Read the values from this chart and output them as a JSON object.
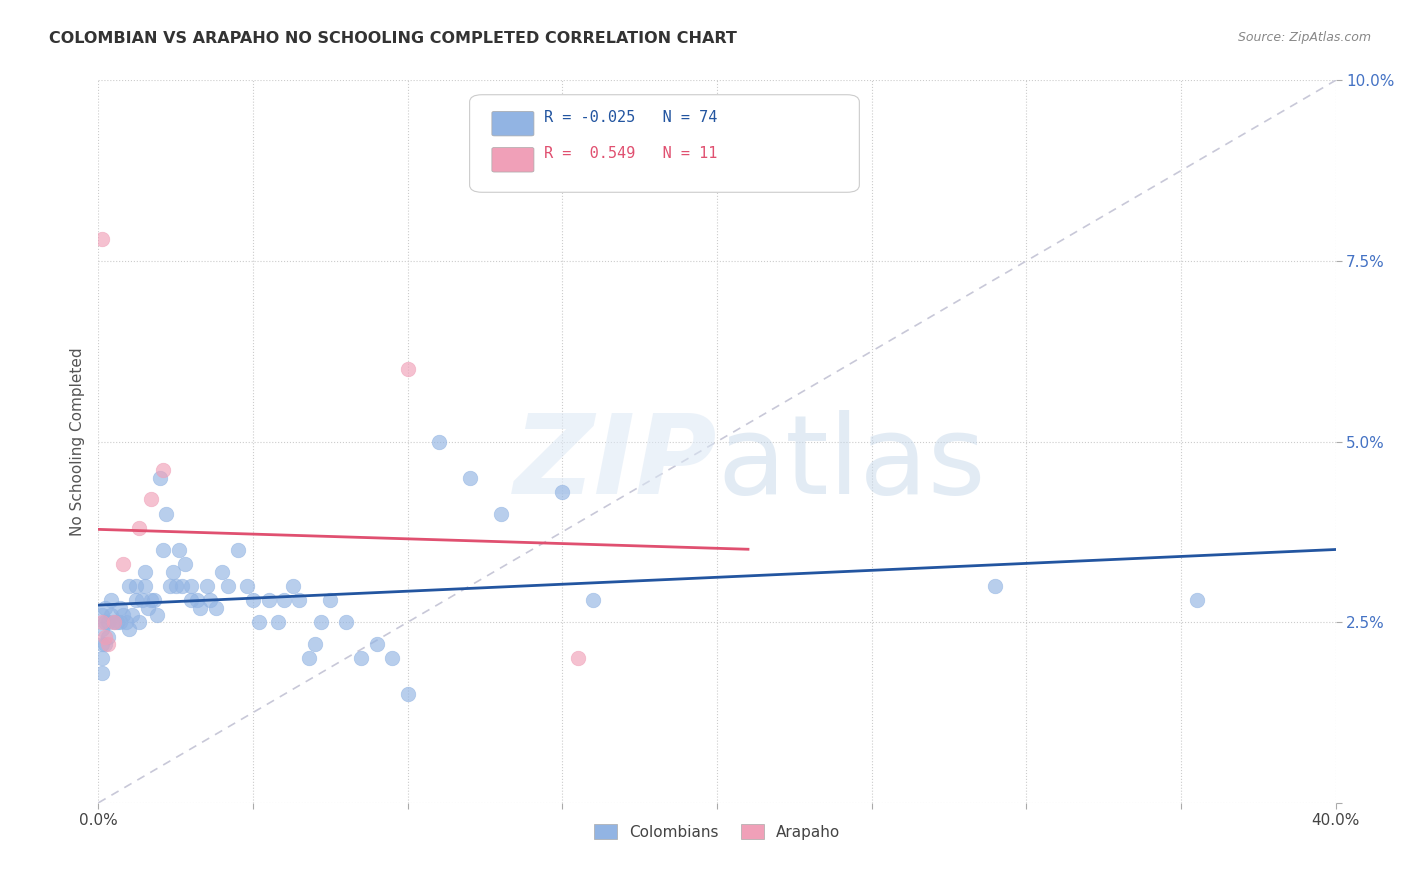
{
  "title": "COLOMBIAN VS ARAPAHO NO SCHOOLING COMPLETED CORRELATION CHART",
  "source": "Source: ZipAtlas.com",
  "ylabel": "No Schooling Completed",
  "xlim": [
    0.0,
    0.4
  ],
  "ylim": [
    0.0,
    0.1
  ],
  "xticks": [
    0.0,
    0.05,
    0.1,
    0.15,
    0.2,
    0.25,
    0.3,
    0.35,
    0.4
  ],
  "yticks": [
    0.0,
    0.025,
    0.05,
    0.075,
    0.1
  ],
  "colombian_R": -0.025,
  "colombian_N": 74,
  "arapaho_R": 0.549,
  "arapaho_N": 11,
  "colombian_color": "#92b4e3",
  "arapaho_color": "#f0a0b8",
  "colombian_line_color": "#2355a0",
  "arapaho_line_color": "#e05070",
  "diagonal_color": "#c8c8d8",
  "background_color": "#ffffff",
  "colombian_x": [
    0.001,
    0.001,
    0.001,
    0.001,
    0.001,
    0.002,
    0.002,
    0.002,
    0.003,
    0.003,
    0.004,
    0.004,
    0.005,
    0.006,
    0.007,
    0.007,
    0.008,
    0.009,
    0.01,
    0.01,
    0.011,
    0.012,
    0.012,
    0.013,
    0.014,
    0.015,
    0.015,
    0.016,
    0.017,
    0.018,
    0.019,
    0.02,
    0.021,
    0.022,
    0.023,
    0.024,
    0.025,
    0.026,
    0.027,
    0.028,
    0.03,
    0.03,
    0.032,
    0.033,
    0.035,
    0.036,
    0.038,
    0.04,
    0.042,
    0.045,
    0.048,
    0.05,
    0.052,
    0.055,
    0.058,
    0.06,
    0.063,
    0.065,
    0.068,
    0.07,
    0.072,
    0.075,
    0.08,
    0.085,
    0.09,
    0.095,
    0.1,
    0.11,
    0.12,
    0.13,
    0.15,
    0.16,
    0.29,
    0.355
  ],
  "colombian_y": [
    0.022,
    0.024,
    0.026,
    0.02,
    0.018,
    0.022,
    0.025,
    0.027,
    0.023,
    0.025,
    0.026,
    0.028,
    0.025,
    0.025,
    0.025,
    0.027,
    0.026,
    0.025,
    0.024,
    0.03,
    0.026,
    0.028,
    0.03,
    0.025,
    0.028,
    0.03,
    0.032,
    0.027,
    0.028,
    0.028,
    0.026,
    0.045,
    0.035,
    0.04,
    0.03,
    0.032,
    0.03,
    0.035,
    0.03,
    0.033,
    0.028,
    0.03,
    0.028,
    0.027,
    0.03,
    0.028,
    0.027,
    0.032,
    0.03,
    0.035,
    0.03,
    0.028,
    0.025,
    0.028,
    0.025,
    0.028,
    0.03,
    0.028,
    0.02,
    0.022,
    0.025,
    0.028,
    0.025,
    0.02,
    0.022,
    0.02,
    0.015,
    0.05,
    0.045,
    0.04,
    0.043,
    0.028,
    0.03,
    0.028
  ],
  "arapaho_x": [
    0.001,
    0.001,
    0.002,
    0.003,
    0.005,
    0.008,
    0.013,
    0.017,
    0.021,
    0.155,
    0.1
  ],
  "arapaho_y": [
    0.078,
    0.025,
    0.023,
    0.022,
    0.025,
    0.033,
    0.038,
    0.042,
    0.046,
    0.02,
    0.06
  ],
  "watermark_zip": "ZIP",
  "watermark_atlas": "atlas",
  "legend_box_color": "#ffffff"
}
